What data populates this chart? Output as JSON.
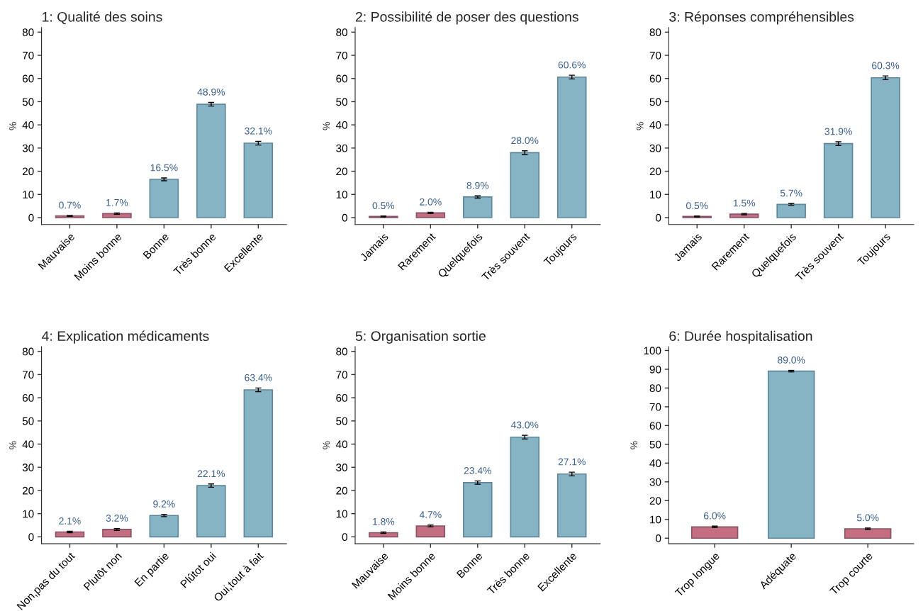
{
  "chart_data": [
    {
      "type": "bar",
      "title": "1: Qualité des soins",
      "ylabel": "%",
      "categories": [
        "Mauvaise",
        "Moins bonne",
        "Bonne",
        "Très bonne",
        "Excellente"
      ],
      "values": [
        0.7,
        1.7,
        16.5,
        48.9,
        32.1
      ],
      "errors": [
        0.2,
        0.3,
        0.6,
        0.8,
        0.8
      ],
      "value_labels": [
        "0.7%",
        "1.7%",
        "16.5%",
        "48.9%",
        "32.1%"
      ],
      "colors": [
        "#c46e82",
        "#c46e82",
        "#86b4c4",
        "#86b4c4",
        "#86b4c4"
      ],
      "ylim": [
        -3,
        82
      ],
      "yticks": [
        0,
        10,
        20,
        30,
        40,
        50,
        60,
        70,
        80
      ],
      "grid": false,
      "legend": false
    },
    {
      "type": "bar",
      "title": "2: Possibilité de poser des questions",
      "ylabel": "%",
      "categories": [
        "Jamais",
        "Rarement",
        "Quelquefois",
        "Très souvent",
        "Toujours"
      ],
      "values": [
        0.5,
        2.0,
        8.9,
        28.0,
        60.6
      ],
      "errors": [
        0.2,
        0.3,
        0.5,
        0.8,
        0.8
      ],
      "value_labels": [
        "0.5%",
        "2.0%",
        "8.9%",
        "28.0%",
        "60.6%"
      ],
      "colors": [
        "#c46e82",
        "#c46e82",
        "#86b4c4",
        "#86b4c4",
        "#86b4c4"
      ],
      "ylim": [
        -3,
        82
      ],
      "yticks": [
        0,
        10,
        20,
        30,
        40,
        50,
        60,
        70,
        80
      ],
      "grid": false,
      "legend": false
    },
    {
      "type": "bar",
      "title": "3: Réponses compréhensibles",
      "ylabel": "%",
      "categories": [
        "Jamais",
        "Rarement",
        "Quelquefois",
        "Très souvent",
        "Toujours"
      ],
      "values": [
        0.5,
        1.5,
        5.7,
        31.9,
        60.3
      ],
      "errors": [
        0.2,
        0.3,
        0.4,
        0.8,
        0.8
      ],
      "value_labels": [
        "0.5%",
        "1.5%",
        "5.7%",
        "31.9%",
        "60.3%"
      ],
      "colors": [
        "#c46e82",
        "#c46e82",
        "#86b4c4",
        "#86b4c4",
        "#86b4c4"
      ],
      "ylim": [
        -3,
        82
      ],
      "yticks": [
        0,
        10,
        20,
        30,
        40,
        50,
        60,
        70,
        80
      ],
      "grid": false,
      "legend": false
    },
    {
      "type": "bar",
      "title": "4: Explication médicaments",
      "ylabel": "%",
      "categories": [
        "Non,pas du tout",
        "Plutôt non",
        "En partie",
        "Plûtot oui",
        "Oui,tout à fait"
      ],
      "values": [
        2.1,
        3.2,
        9.2,
        22.1,
        63.4
      ],
      "errors": [
        0.3,
        0.4,
        0.5,
        0.7,
        0.8
      ],
      "value_labels": [
        "2.1%",
        "3.2%",
        "9.2%",
        "22.1%",
        "63.4%"
      ],
      "colors": [
        "#c46e82",
        "#c46e82",
        "#86b4c4",
        "#86b4c4",
        "#86b4c4"
      ],
      "ylim": [
        -3,
        82
      ],
      "yticks": [
        0,
        10,
        20,
        30,
        40,
        50,
        60,
        70,
        80
      ],
      "grid": false,
      "legend": false
    },
    {
      "type": "bar",
      "title": "5: Organisation sortie",
      "ylabel": "%",
      "categories": [
        "Mauvaise",
        "Moins bonne",
        "Bonne",
        "Très bonne",
        "Excellente"
      ],
      "values": [
        1.8,
        4.7,
        23.4,
        43.0,
        27.1
      ],
      "errors": [
        0.3,
        0.4,
        0.7,
        0.8,
        0.8
      ],
      "value_labels": [
        "1.8%",
        "4.7%",
        "23.4%",
        "43.0%",
        "27.1%"
      ],
      "colors": [
        "#c46e82",
        "#c46e82",
        "#86b4c4",
        "#86b4c4",
        "#86b4c4"
      ],
      "ylim": [
        -3,
        82
      ],
      "yticks": [
        0,
        10,
        20,
        30,
        40,
        50,
        60,
        70,
        80
      ],
      "grid": false,
      "legend": false
    },
    {
      "type": "bar",
      "title": "6: Durée hospitalisation",
      "ylabel": "%",
      "categories": [
        "Trop longue",
        "Adéquate",
        "Trop courte"
      ],
      "values": [
        6.0,
        89.0,
        5.0
      ],
      "errors": [
        0.4,
        0.4,
        0.4
      ],
      "value_labels": [
        "6.0%",
        "89.0%",
        "5.0%"
      ],
      "colors": [
        "#c46e82",
        "#86b4c4",
        "#c46e82"
      ],
      "ylim": [
        -3,
        102
      ],
      "yticks": [
        0,
        10,
        20,
        30,
        40,
        50,
        60,
        70,
        80,
        90,
        100
      ],
      "grid": false,
      "legend": false
    }
  ]
}
